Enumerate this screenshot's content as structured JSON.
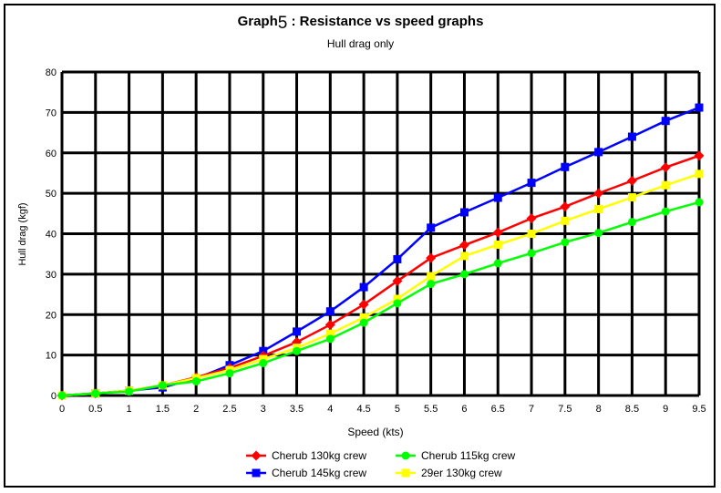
{
  "title_main": "Graph",
  "title_num": "5",
  "title_rest": " : Resistance vs speed graphs",
  "subtitle": "Hull drag only",
  "chart_data": {
    "type": "line",
    "title": "Graph5 : Resistance vs speed graphs",
    "subtitle": "Hull drag only",
    "xlabel": "Speed  (kts)",
    "ylabel": "Hull drag (kgf)",
    "xlim": [
      0,
      9.5
    ],
    "ylim": [
      0,
      80
    ],
    "grid": true,
    "legend_position": "bottom",
    "x": [
      0,
      0.5,
      1,
      1.5,
      2,
      2.5,
      3,
      3.5,
      4,
      4.5,
      5,
      5.5,
      6,
      6.5,
      7,
      7.5,
      8,
      8.5,
      9,
      9.5
    ],
    "x_ticks": [
      "0",
      "0.5",
      "1",
      "1.5",
      "2",
      "2.5",
      "3",
      "3.5",
      "4",
      "4.5",
      "5",
      "5.5",
      "6",
      "6.5",
      "7",
      "7.5",
      "8",
      "8.5",
      "9",
      "9.5"
    ],
    "y_ticks": [
      "0",
      "10",
      "20",
      "30",
      "40",
      "50",
      "60",
      "70",
      "80"
    ],
    "series": [
      {
        "name": "Cherub 130kg crew",
        "color": "#ff0000",
        "marker": "diamond",
        "values": [
          0,
          0.5,
          1.2,
          2.5,
          4.5,
          6.8,
          9.8,
          13.2,
          17.5,
          22.5,
          28.3,
          34.0,
          37.2,
          40.3,
          43.8,
          46.7,
          50.0,
          53.1,
          56.4,
          59.3
        ]
      },
      {
        "name": "Cherub 145kg crew",
        "color": "#0000ff",
        "marker": "square",
        "values": [
          0,
          0.5,
          1.2,
          2.0,
          4.2,
          7.5,
          11.0,
          15.8,
          20.8,
          26.8,
          33.7,
          41.5,
          45.3,
          48.9,
          52.6,
          56.5,
          60.2,
          64.0,
          67.9,
          71.2
        ]
      },
      {
        "name": "Cherub 115kg crew",
        "color": "#00ff00",
        "marker": "circle",
        "values": [
          0,
          0.5,
          1.0,
          2.5,
          3.5,
          5.5,
          8.0,
          11.0,
          14.0,
          18.0,
          22.8,
          27.6,
          30.0,
          32.7,
          35.2,
          37.9,
          40.2,
          42.9,
          45.5,
          47.8
        ]
      },
      {
        "name": "29er 130kg crew",
        "color": "#ffff00",
        "marker": "square",
        "values": [
          0,
          0.5,
          1.2,
          2.5,
          4.3,
          6.3,
          9.0,
          11.8,
          15.3,
          19.3,
          23.9,
          29.5,
          34.5,
          37.3,
          40.0,
          43.2,
          46.1,
          49.0,
          52.0,
          54.8
        ]
      }
    ]
  }
}
